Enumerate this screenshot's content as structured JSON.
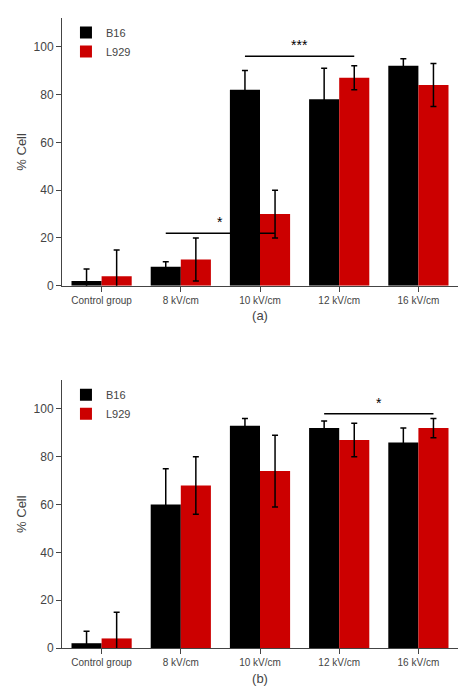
{
  "chart_data": [
    {
      "type": "bar",
      "categories": [
        "Control group",
        "8 kV/cm",
        "10 kV/cm",
        "12 kV/cm",
        "16 kV/cm"
      ],
      "series": [
        {
          "name": "B16",
          "color": "#000000",
          "values": [
            2,
            8,
            82,
            78,
            92
          ],
          "errors": [
            5,
            2,
            8,
            13,
            3
          ]
        },
        {
          "name": "L929",
          "color": "#cc0000",
          "values": [
            4,
            11,
            30,
            87,
            84
          ],
          "errors": [
            11,
            9,
            10,
            5,
            9
          ]
        }
      ],
      "xlabel": "(a)",
      "ylabel": "% Cell",
      "ylim": [
        0,
        112
      ],
      "yticks": [
        0,
        20,
        40,
        60,
        80,
        100
      ],
      "legend": "upper left",
      "grid": false,
      "annotations": [
        {
          "text": "*",
          "x": [
            "8 kV/cm",
            "10 kV/cm"
          ],
          "y": 22
        },
        {
          "text": "***",
          "x": [
            "10 kV/cm",
            "12 kV/cm"
          ],
          "y": 96
        }
      ]
    },
    {
      "type": "bar",
      "categories": [
        "Control group",
        "8 kV/cm",
        "10 kV/cm",
        "12 kV/cm",
        "16 kV/cm"
      ],
      "series": [
        {
          "name": "B16",
          "color": "#000000",
          "values": [
            2,
            60,
            93,
            92,
            86
          ],
          "errors": [
            5,
            15,
            3,
            3,
            6
          ]
        },
        {
          "name": "L929",
          "color": "#cc0000",
          "values": [
            4,
            68,
            74,
            87,
            92
          ],
          "errors": [
            11,
            12,
            15,
            7,
            4
          ]
        }
      ],
      "xlabel": "(b)",
      "ylabel": "% Cell",
      "ylim": [
        0,
        112
      ],
      "yticks": [
        0,
        20,
        40,
        60,
        80,
        100
      ],
      "legend": "upper left",
      "grid": false,
      "annotations": [
        {
          "text": "*",
          "x": [
            "12 kV/cm",
            "16 kV/cm"
          ],
          "y": 98
        }
      ]
    }
  ]
}
